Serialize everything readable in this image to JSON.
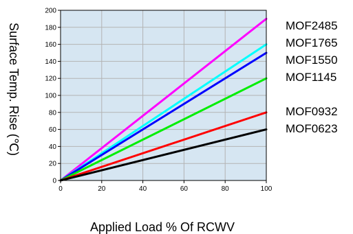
{
  "chart_data": {
    "type": "line",
    "title": "",
    "xlabel": "Applied Load % Of RCWV",
    "ylabel": "Surface Temp. Rise (℃)",
    "xlim": [
      0,
      100
    ],
    "ylim": [
      0,
      200
    ],
    "x_ticks": [
      "0",
      "20",
      "40",
      "60",
      "80",
      "100"
    ],
    "y_ticks": [
      "0",
      "20",
      "40",
      "60",
      "80",
      "100",
      "120",
      "140",
      "160",
      "180",
      "200"
    ],
    "grid": true,
    "legend": "right",
    "plot_background": "#d6e6f2",
    "series": [
      {
        "name": "MOF2485",
        "color": "#ff00ff",
        "x": [
          0,
          100
        ],
        "y": [
          0,
          190
        ]
      },
      {
        "name": "MOF1765",
        "color": "#00ffff",
        "x": [
          0,
          100
        ],
        "y": [
          0,
          160
        ]
      },
      {
        "name": "MOF1550",
        "color": "#0000ff",
        "x": [
          0,
          100
        ],
        "y": [
          0,
          150
        ]
      },
      {
        "name": "MOF1145",
        "color": "#00ee00",
        "x": [
          0,
          100
        ],
        "y": [
          0,
          120
        ]
      },
      {
        "name": "MOF0932",
        "color": "#ff0000",
        "x": [
          0,
          100
        ],
        "y": [
          0,
          80
        ]
      },
      {
        "name": "MOF0623",
        "color": "#000000",
        "x": [
          0,
          100
        ],
        "y": [
          0,
          60
        ]
      }
    ]
  }
}
